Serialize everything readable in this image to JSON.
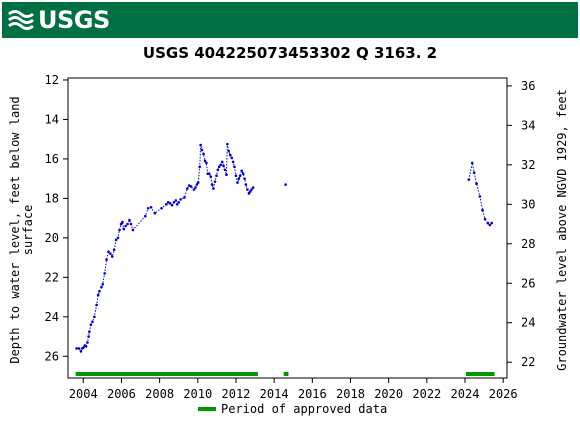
{
  "header": {
    "logo_text": "USGS",
    "logo_icon": "usgs-wave-icon",
    "banner_color": "#006f41"
  },
  "chart_data": {
    "type": "scatter",
    "title": "USGS 404225073453302 Q  3163. 2",
    "ylabel": "Depth to water level, feet below land surface",
    "ylabel_lines": [
      "Depth to water level, feet below land",
      "surface"
    ],
    "y2label": "Groundwater level above NGVD 1929, feet",
    "x_ticks": [
      "2004",
      "2006",
      "2008",
      "2010",
      "2012",
      "2014",
      "2016",
      "2018",
      "2020",
      "2022",
      "2024",
      "2026"
    ],
    "y_ticks": [
      "12",
      "14",
      "16",
      "18",
      "20",
      "22",
      "24",
      "26"
    ],
    "y2_ticks": [
      "22",
      "24",
      "26",
      "28",
      "30",
      "32",
      "34",
      "36"
    ],
    "xlim": [
      2003.2,
      2026.2
    ],
    "ylim": [
      27.1,
      11.9
    ],
    "y_inverted": true,
    "y2_offset": 48.3,
    "grid": false,
    "series_color": "#0000cc",
    "series": [
      {
        "segments": [
          [
            [
              2003.65,
              25.6
            ],
            [
              2003.78,
              25.6
            ],
            [
              2003.88,
              25.75
            ],
            [
              2003.95,
              25.6
            ],
            [
              2004.02,
              25.55
            ],
            [
              2004.08,
              25.45
            ],
            [
              2004.15,
              25.5
            ],
            [
              2004.22,
              25.3
            ],
            [
              2004.28,
              25.0
            ],
            [
              2004.32,
              24.75
            ],
            [
              2004.4,
              24.4
            ],
            [
              2004.48,
              24.25
            ],
            [
              2004.58,
              24.0
            ],
            [
              2004.7,
              23.4
            ],
            [
              2004.78,
              22.9
            ],
            [
              2004.85,
              22.7
            ],
            [
              2004.95,
              22.5
            ],
            [
              2005.02,
              22.35
            ],
            [
              2005.12,
              21.8
            ],
            [
              2005.22,
              21.1
            ],
            [
              2005.32,
              20.7
            ],
            [
              2005.42,
              20.8
            ],
            [
              2005.52,
              20.95
            ],
            [
              2005.62,
              20.6
            ],
            [
              2005.72,
              20.1
            ],
            [
              2005.82,
              20.0
            ],
            [
              2005.9,
              19.6
            ],
            [
              2005.98,
              19.3
            ],
            [
              2006.05,
              19.2
            ],
            [
              2006.12,
              19.55
            ],
            [
              2006.22,
              19.4
            ],
            [
              2006.32,
              19.3
            ],
            [
              2006.42,
              19.1
            ],
            [
              2006.5,
              19.3
            ],
            [
              2006.6,
              19.6
            ],
            [
              2007.25,
              18.9
            ],
            [
              2007.4,
              18.5
            ],
            [
              2007.55,
              18.45
            ],
            [
              2007.75,
              18.75
            ],
            [
              2008.1,
              18.5
            ],
            [
              2008.35,
              18.3
            ],
            [
              2008.45,
              18.2
            ],
            [
              2008.55,
              18.25
            ],
            [
              2008.65,
              18.35
            ],
            [
              2008.75,
              18.2
            ],
            [
              2008.85,
              18.1
            ],
            [
              2008.92,
              18.3
            ],
            [
              2009.0,
              18.2
            ],
            [
              2009.1,
              18.05
            ],
            [
              2009.3,
              17.95
            ],
            [
              2009.45,
              17.5
            ],
            [
              2009.55,
              17.35
            ],
            [
              2009.65,
              17.4
            ],
            [
              2009.8,
              17.55
            ],
            [
              2009.88,
              17.45
            ],
            [
              2009.95,
              17.3
            ],
            [
              2010.02,
              17.2
            ],
            [
              2010.1,
              16.4
            ],
            [
              2010.15,
              15.3
            ],
            [
              2010.22,
              15.55
            ],
            [
              2010.3,
              15.75
            ],
            [
              2010.38,
              16.1
            ],
            [
              2010.45,
              16.2
            ],
            [
              2010.52,
              16.75
            ],
            [
              2010.6,
              16.75
            ],
            [
              2010.68,
              16.9
            ],
            [
              2010.75,
              17.3
            ],
            [
              2010.82,
              17.5
            ],
            [
              2010.9,
              17.15
            ],
            [
              2010.98,
              16.85
            ],
            [
              2011.05,
              16.55
            ],
            [
              2011.12,
              16.4
            ],
            [
              2011.2,
              16.3
            ],
            [
              2011.28,
              16.15
            ],
            [
              2011.35,
              16.35
            ],
            [
              2011.42,
              16.55
            ],
            [
              2011.5,
              16.8
            ],
            [
              2011.55,
              15.25
            ],
            [
              2011.62,
              15.6
            ],
            [
              2011.7,
              15.8
            ],
            [
              2011.78,
              15.95
            ],
            [
              2011.85,
              16.15
            ],
            [
              2011.92,
              16.4
            ],
            [
              2012.0,
              16.85
            ],
            [
              2012.08,
              17.2
            ],
            [
              2012.15,
              17.0
            ],
            [
              2012.22,
              16.85
            ],
            [
              2012.3,
              16.6
            ],
            [
              2012.38,
              16.75
            ],
            [
              2012.45,
              17.0
            ],
            [
              2012.52,
              17.3
            ],
            [
              2012.6,
              17.55
            ],
            [
              2012.68,
              17.75
            ],
            [
              2012.75,
              17.65
            ],
            [
              2012.82,
              17.55
            ],
            [
              2012.9,
              17.45
            ]
          ],
          [
            [
              2014.6,
              17.3
            ]
          ],
          [
            [
              2024.2,
              17.05
            ],
            [
              2024.38,
              16.2
            ],
            [
              2024.48,
              16.7
            ],
            [
              2024.6,
              17.25
            ],
            [
              2024.78,
              17.9
            ],
            [
              2024.92,
              18.6
            ],
            [
              2025.05,
              19.05
            ],
            [
              2025.2,
              19.25
            ],
            [
              2025.3,
              19.35
            ],
            [
              2025.4,
              19.25
            ]
          ]
        ]
      }
    ],
    "approved_periods": [
      [
        2003.6,
        2013.15
      ],
      [
        2014.5,
        2014.75
      ],
      [
        2024.05,
        2025.55
      ]
    ],
    "approved_color": "#009900",
    "legend_label": "Period of approved data",
    "legend_placement": "bottom"
  }
}
